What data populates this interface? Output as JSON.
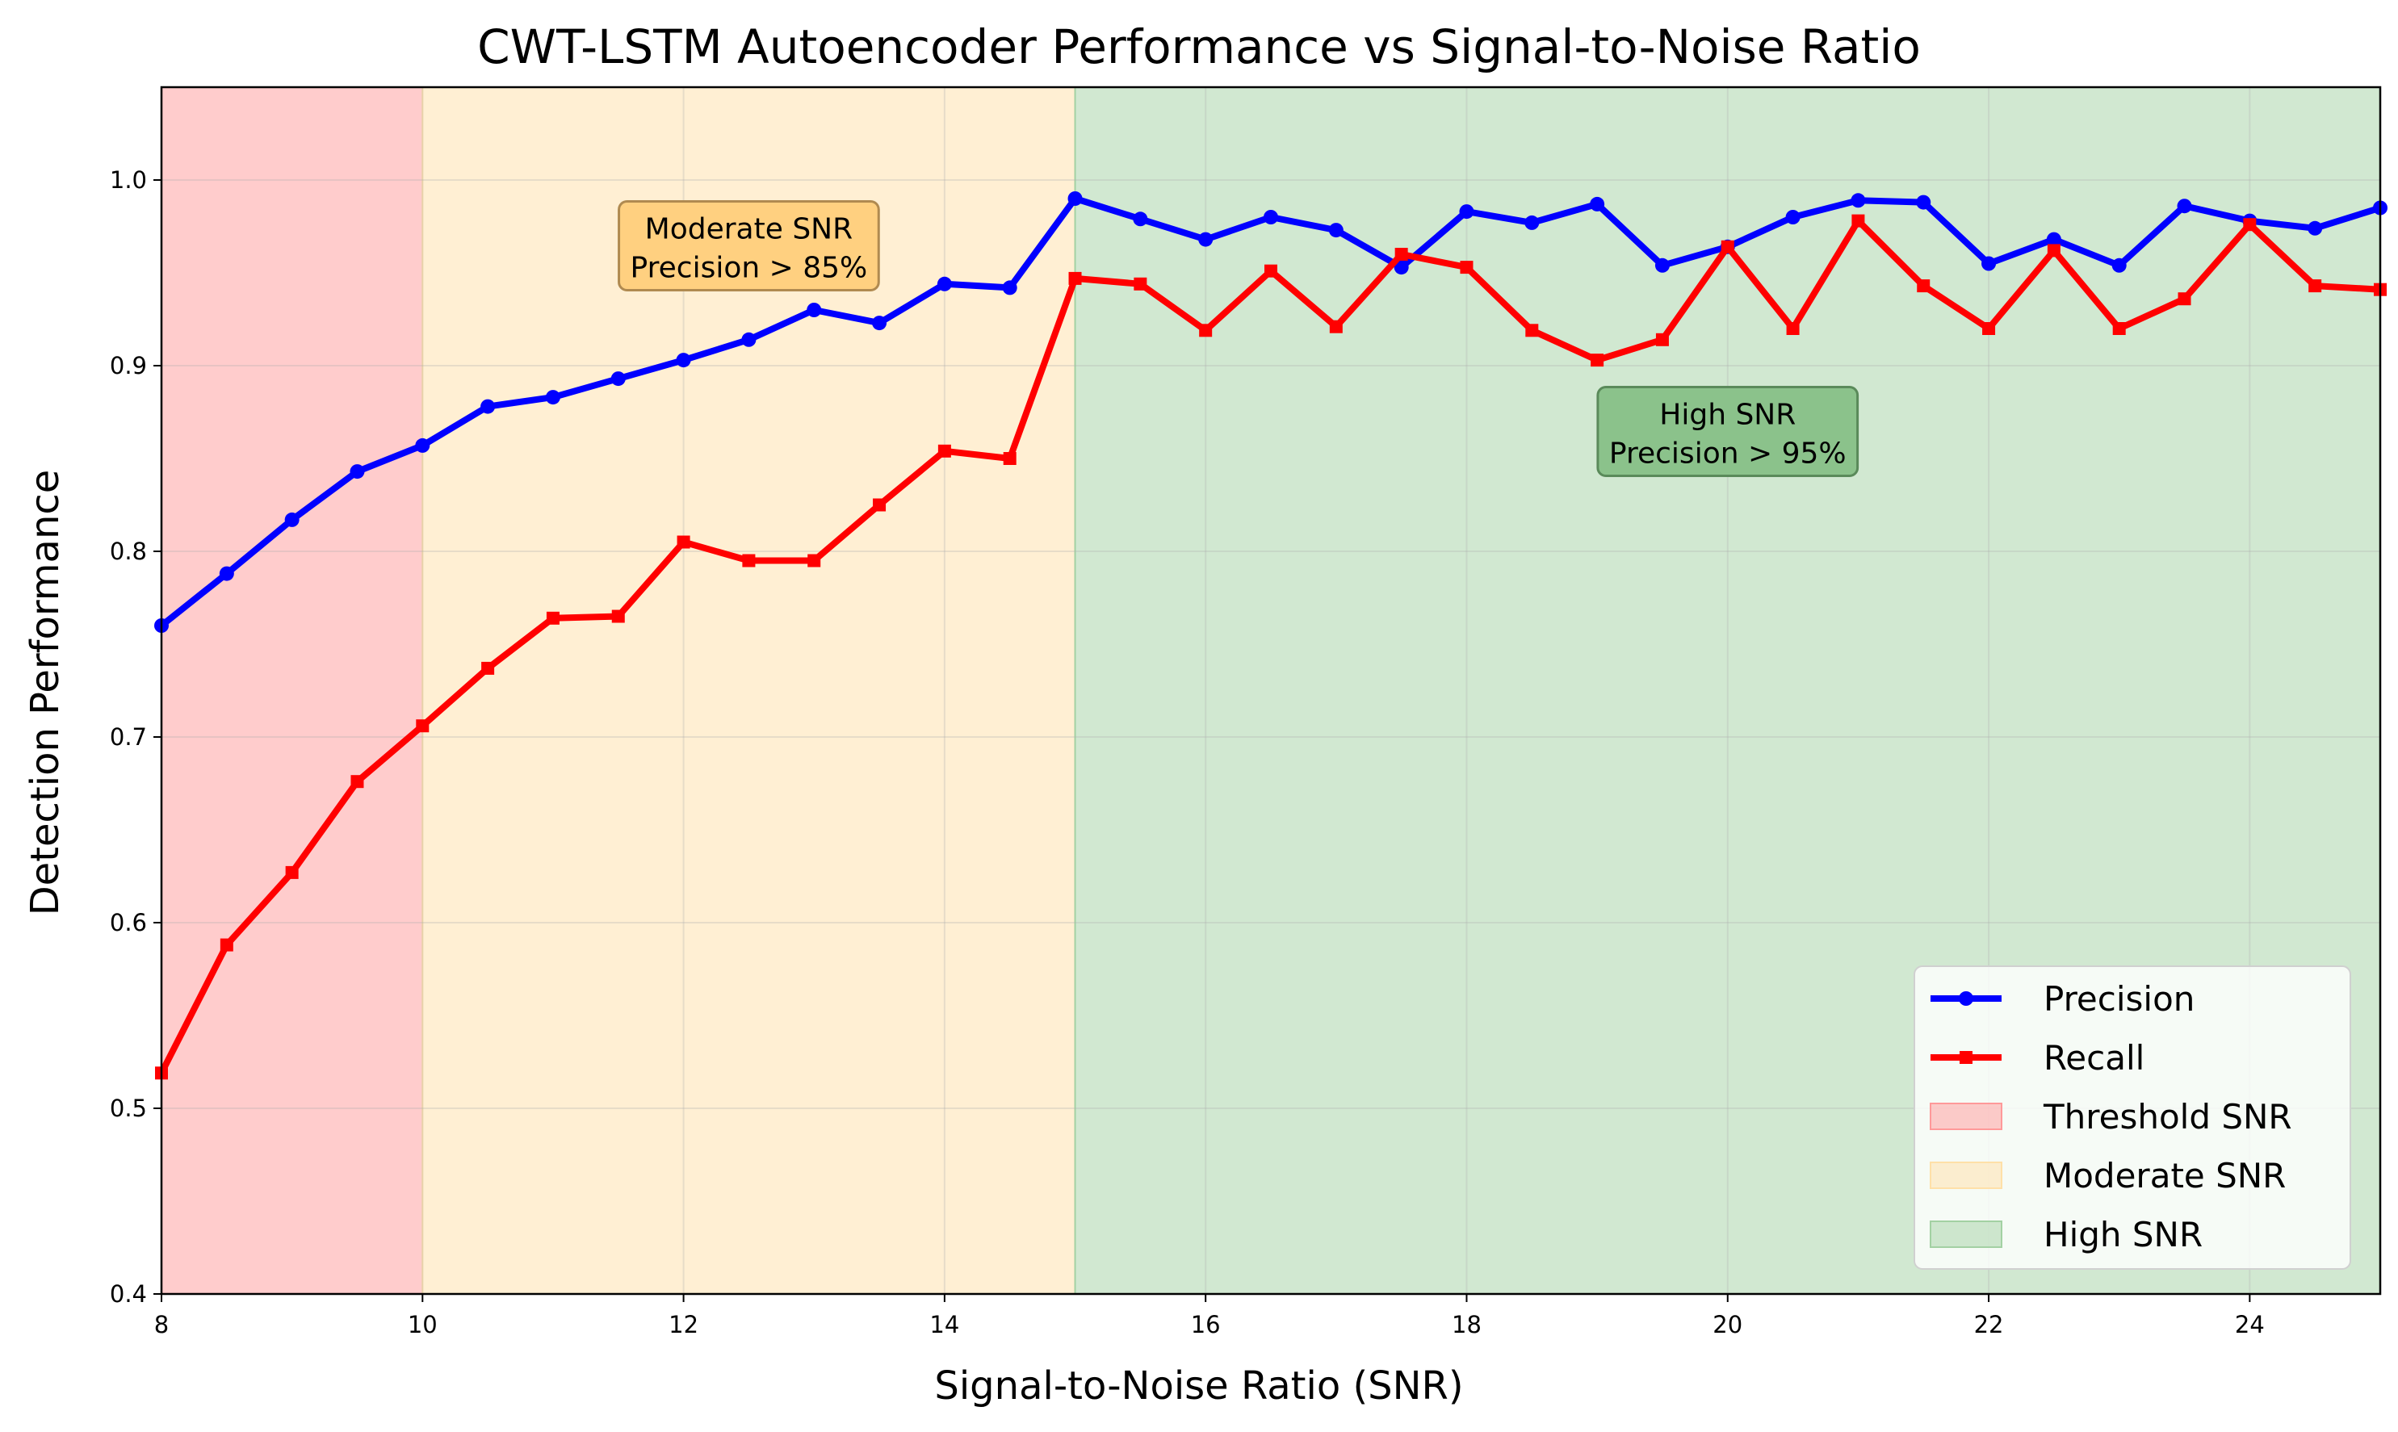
{
  "chart_data": {
    "type": "line",
    "title": "CWT-LSTM Autoencoder Performance vs Signal-to-Noise Ratio",
    "xlabel": "Signal-to-Noise Ratio (SNR)",
    "ylabel": "Detection Performance",
    "xlim": [
      8,
      25
    ],
    "ylim": [
      0.4,
      1.05
    ],
    "xticks": [
      8,
      10,
      12,
      14,
      16,
      18,
      20,
      22,
      24
    ],
    "yticks": [
      0.4,
      0.5,
      0.6,
      0.7,
      0.8,
      0.9,
      1.0
    ],
    "xtick_labels": [
      "8",
      "10",
      "12",
      "14",
      "16",
      "18",
      "20",
      "22",
      "24"
    ],
    "ytick_labels": [
      "0.4",
      "0.5",
      "0.6",
      "0.7",
      "0.8",
      "0.9",
      "1.0"
    ],
    "grid": true,
    "legend_position": "bottom-right",
    "x": [
      8,
      8.5,
      9,
      9.5,
      10,
      10.5,
      11,
      11.5,
      12,
      12.5,
      13,
      13.5,
      14,
      14.5,
      15,
      15.5,
      16,
      16.5,
      17,
      17.5,
      18,
      18.5,
      19,
      19.5,
      20,
      20.5,
      21,
      21.5,
      22,
      22.5,
      23,
      23.5,
      24,
      24.5,
      25
    ],
    "series": [
      {
        "name": "Precision",
        "color": "#0000ff",
        "marker": "circle",
        "values": [
          0.76,
          0.788,
          0.817,
          0.843,
          0.857,
          0.878,
          0.883,
          0.893,
          0.903,
          0.914,
          0.93,
          0.923,
          0.944,
          0.942,
          0.99,
          0.979,
          0.968,
          0.98,
          0.973,
          0.953,
          0.983,
          0.977,
          0.987,
          0.954,
          0.964,
          0.98,
          0.989,
          0.988,
          0.955,
          0.968,
          0.954,
          0.986,
          0.978,
          0.974,
          0.985
        ]
      },
      {
        "name": "Recall",
        "color": "#ff0000",
        "marker": "square",
        "values": [
          0.519,
          0.588,
          0.627,
          0.676,
          0.706,
          0.737,
          0.764,
          0.765,
          0.805,
          0.795,
          0.795,
          0.825,
          0.854,
          0.85,
          0.947,
          0.944,
          0.919,
          0.951,
          0.921,
          0.96,
          0.953,
          0.919,
          0.903,
          0.914,
          0.964,
          0.92,
          0.978,
          0.943,
          0.92,
          0.962,
          0.92,
          0.936,
          0.976,
          0.943,
          0.941
        ]
      }
    ],
    "regions": [
      {
        "name": "Threshold SNR",
        "x_start": 8,
        "x_end": 10,
        "color": "#ff9999"
      },
      {
        "name": "Moderate SNR",
        "x_start": 10,
        "x_end": 15,
        "color": "#ffe0a8"
      },
      {
        "name": "High SNR",
        "x_start": 15,
        "x_end": 25,
        "color": "#a3d1a3"
      }
    ],
    "annotations": [
      {
        "line1": "Moderate SNR",
        "line2": "Precision > 85%",
        "x": 12.5,
        "y": 0.965,
        "box_color": "#ffd080",
        "edge_color": "#b08a50"
      },
      {
        "line1": "High SNR",
        "line2": "Precision > 95%",
        "x": 20,
        "y": 0.865,
        "box_color": "#8bc28b",
        "edge_color": "#5a8a5a"
      }
    ]
  }
}
